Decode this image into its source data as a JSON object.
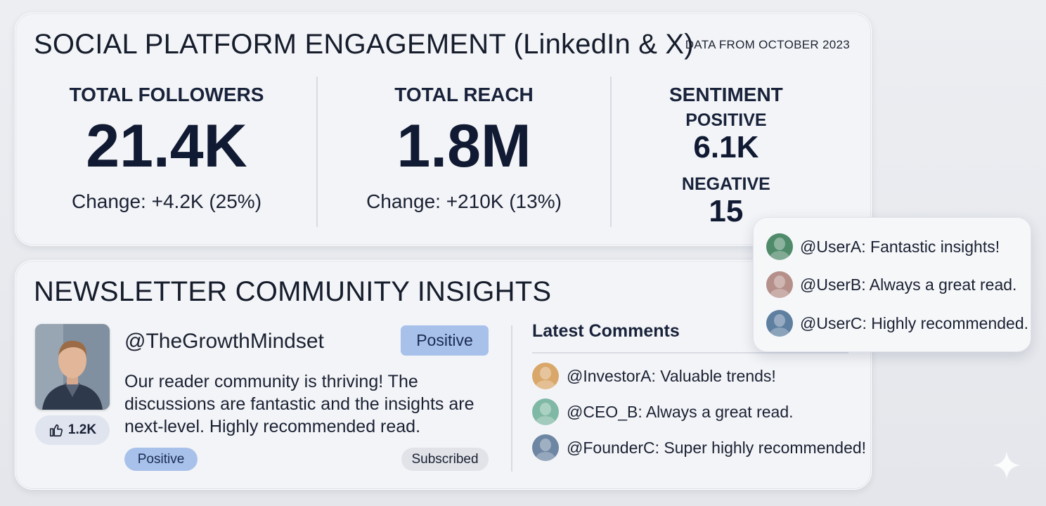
{
  "engagement": {
    "title": "SOCIAL PLATFORM ENGAGEMENT (LinkedIn & X)",
    "date_note": "DATA FROM OCTOBER 2023",
    "followers": {
      "label": "TOTAL FOLLOWERS",
      "value": "21.4K",
      "change": "Change: +4.2K (25%)"
    },
    "reach": {
      "label": "TOTAL REACH",
      "value": "1.8M",
      "change": "Change: +210K (13%)"
    },
    "sentiment": {
      "title": "SENTIMENT",
      "positive_label": "POSITIVE",
      "positive_value": "6.1K",
      "negative_label": "NEGATIVE",
      "negative_value": "15"
    }
  },
  "popup_comments": [
    {
      "text": "@UserA: Fantastic insights!",
      "avatar_color": "#4f8a6a"
    },
    {
      "text": "@UserB: Always a great read.",
      "avatar_color": "#b58f8a"
    },
    {
      "text": "@UserC: Highly recommended.",
      "avatar_color": "#5e7fa0"
    }
  ],
  "newsletter": {
    "title": "NEWSLETTER COMMUNITY INSIGHTS",
    "handle": "@TheGrowthMindset",
    "sentiment_chip": "Positive",
    "post_text": "Our reader community is thriving! The discussions are fantastic and the insights are next-level. Highly recommended read.",
    "likes": "1.2K",
    "tag_positive": "Positive",
    "tag_subscribed": "Subscribed",
    "latest_comments_title": "Latest Comments",
    "comments": [
      {
        "text": "@InvestorA: Valuable trends!",
        "avatar_color": "#d9a76a"
      },
      {
        "text": "@CEO_B: Always a great read.",
        "avatar_color": "#7fb8a4"
      },
      {
        "text": "@FounderC: Super highly recommended!",
        "avatar_color": "#6d86a3"
      }
    ]
  }
}
